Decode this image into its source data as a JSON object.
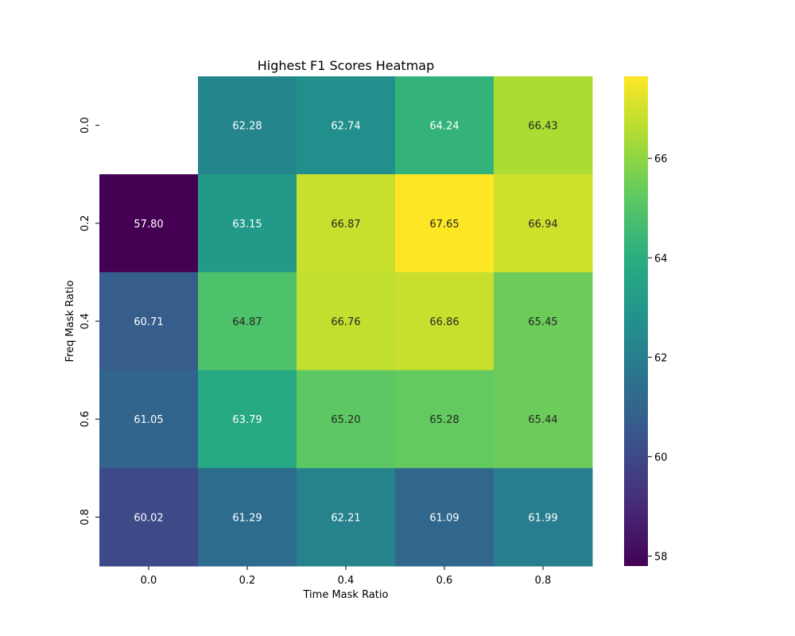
{
  "chart_data": {
    "type": "heatmap",
    "title": "Highest F1 Scores Heatmap",
    "xlabel": "Time Mask Ratio",
    "ylabel": "Freq Mask Ratio",
    "x_categories": [
      "0.0",
      "0.2",
      "0.4",
      "0.6",
      "0.8"
    ],
    "y_categories": [
      "0.0",
      "0.2",
      "0.4",
      "0.6",
      "0.8"
    ],
    "values": [
      [
        null,
        62.28,
        62.74,
        64.24,
        66.43
      ],
      [
        57.8,
        63.15,
        66.87,
        67.65,
        66.94
      ],
      [
        60.71,
        64.87,
        66.76,
        66.86,
        65.45
      ],
      [
        61.05,
        63.79,
        65.2,
        65.28,
        65.44
      ],
      [
        60.02,
        61.29,
        62.21,
        61.09,
        61.99
      ]
    ],
    "value_format": "0.00",
    "colormap": "viridis",
    "color_range": [
      57.8,
      67.65
    ],
    "colorbar_ticks": [
      58,
      60,
      62,
      64,
      66
    ],
    "grid": false,
    "legend": "colorbar-right"
  }
}
